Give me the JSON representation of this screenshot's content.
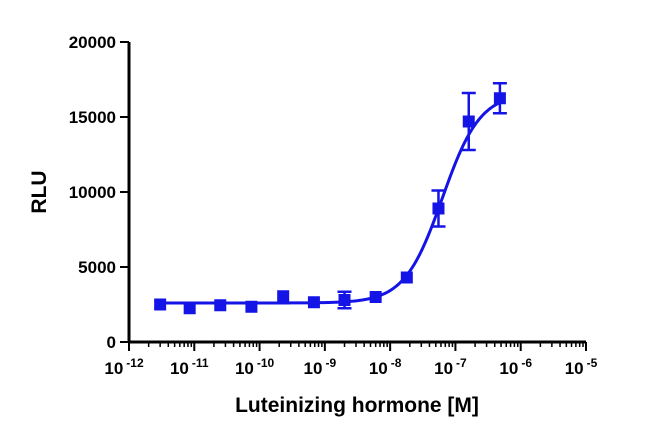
{
  "chart_data": {
    "type": "scatter",
    "xlabel": "Luteinizing hormone [M]",
    "ylabel": "RLU",
    "x_scale": "log10",
    "xlim": [
      1e-12,
      1e-05
    ],
    "ylim": [
      0,
      20000
    ],
    "grid": false,
    "legend": "none",
    "x_ticks": [
      {
        "base": "10",
        "exp": "-12"
      },
      {
        "base": "10",
        "exp": "-11"
      },
      {
        "base": "10",
        "exp": "-10"
      },
      {
        "base": "10",
        "exp": "-9"
      },
      {
        "base": "10",
        "exp": "-8"
      },
      {
        "base": "10",
        "exp": "-7"
      },
      {
        "base": "10",
        "exp": "-6"
      },
      {
        "base": "10",
        "exp": "-5"
      }
    ],
    "x_tick_values": [
      1e-12,
      1e-11,
      1e-10,
      1e-09,
      1e-08,
      1e-07,
      1e-06,
      1e-05
    ],
    "y_ticks": [
      "0",
      "5000",
      "10000",
      "15000",
      "20000"
    ],
    "y_tick_values": [
      0,
      5000,
      10000,
      15000,
      20000
    ],
    "series": [
      {
        "color": "#1414e6",
        "marker": "square",
        "points": [
          {
            "x": 3e-12,
            "y": 2500,
            "err": 0
          },
          {
            "x": 8.5e-12,
            "y": 2250,
            "err": 0
          },
          {
            "x": 2.5e-11,
            "y": 2450,
            "err": 0
          },
          {
            "x": 7.5e-11,
            "y": 2350,
            "err": 0
          },
          {
            "x": 2.3e-10,
            "y": 3050,
            "err": 0
          },
          {
            "x": 6.8e-10,
            "y": 2650,
            "err": 0
          },
          {
            "x": 2e-09,
            "y": 2800,
            "err": 550
          },
          {
            "x": 6e-09,
            "y": 3000,
            "err": 0
          },
          {
            "x": 1.8e-08,
            "y": 4300,
            "err": 0
          },
          {
            "x": 5.5e-08,
            "y": 8900,
            "err": 1200
          },
          {
            "x": 1.6e-07,
            "y": 14700,
            "err": 1900
          },
          {
            "x": 4.8e-07,
            "y": 16250,
            "err": 1000
          }
        ],
        "fit": {
          "model": "four-parameter logistic",
          "bottom": 2600,
          "top": 16600,
          "log_ec50": -7.2,
          "hill": 1.5
        }
      }
    ]
  }
}
